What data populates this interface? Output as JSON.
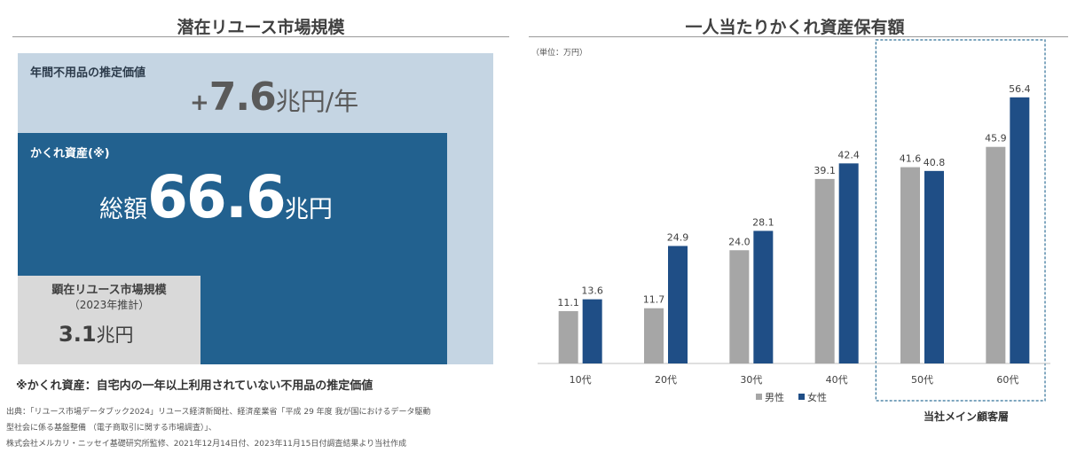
{
  "left": {
    "title": "潜在リユース市場規模",
    "annual": {
      "label": "年間不用品の推定価値",
      "prefix": "+",
      "number": "7.6",
      "unit": "兆円/年"
    },
    "hidden": {
      "label": "かくれ資産(※)",
      "prefix": "総額",
      "number": "66.6",
      "unit": "兆円"
    },
    "visible_market": {
      "label_line1": "顕在リユース市場規模",
      "label_line2": "（2023年推計）",
      "number": "3.1",
      "unit": "兆円"
    },
    "note": "※かくれ資産：自宅内の一年以上利用されていない不用品の推定価値"
  },
  "footnotes": [
    "出典：「リユース市場データブック2024」リユース経済新聞社、経済産業省「平成 29 年度 我が国におけるデータ駆動",
    "型社会に係る基盤整備 （電子商取引に関する市場調査）」、",
    "株式会社メルカリ・ニッセイ基礎研究所監修、2021年12月14日付、2023年11月15日付調査結果より当社作成"
  ],
  "right": {
    "title": "一人当たりかくれ資産保有額",
    "unit_note": "（単位：万円）",
    "highlight_label": "当社メイン顧客層"
  },
  "chart_data": {
    "type": "bar",
    "categories": [
      "10代",
      "20代",
      "30代",
      "40代",
      "50代",
      "60代"
    ],
    "series": [
      {
        "name": "男性",
        "color": "#a6a6a6",
        "values": [
          11.1,
          11.7,
          24.0,
          39.1,
          41.6,
          45.9
        ]
      },
      {
        "name": "女性",
        "color": "#1f4e86",
        "values": [
          13.6,
          24.9,
          28.1,
          42.4,
          40.8,
          56.4
        ]
      }
    ],
    "value_labels": [
      [
        "11.1",
        "11.7",
        "24.0",
        "39.1",
        "41.6",
        "45.9"
      ],
      [
        "13.6",
        "24.9",
        "28.1",
        "42.4",
        "40.8",
        "56.4"
      ]
    ],
    "ylim": [
      0,
      62
    ],
    "legend_position": "bottom",
    "grid": false,
    "highlighted_categories": [
      "50代",
      "60代"
    ]
  },
  "colors": {
    "light_box": "#c5d5e3",
    "dark_box": "#22618f",
    "grey_box": "#d9d9d9"
  }
}
